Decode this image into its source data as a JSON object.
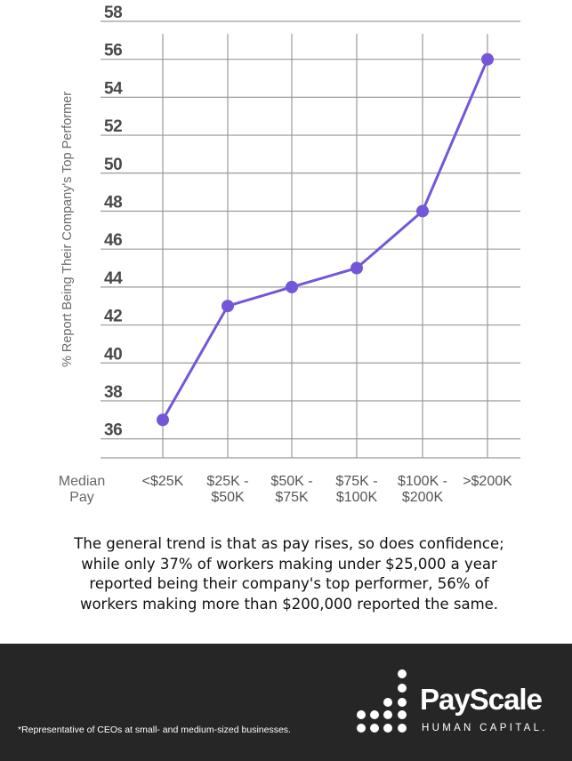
{
  "chart_data": {
    "type": "line",
    "ylabel": "% Report Being Their Company's Top Performer",
    "xlabel": "Median Pay",
    "categories": [
      "<$25K",
      "$25K - $50K",
      "$50K - $75K",
      "$75K - $100K",
      "$100K - $200K",
      ">$200K"
    ],
    "category_lines": [
      [
        "<$25K"
      ],
      [
        "$25K -",
        "$50K"
      ],
      [
        "$50K -",
        "$75K"
      ],
      [
        "$75K -",
        "$100K"
      ],
      [
        "$100K -",
        "$200K"
      ],
      [
        ">$200K"
      ]
    ],
    "xlabel_lines": [
      "Median",
      "Pay"
    ],
    "values": [
      37,
      43,
      44,
      45,
      48,
      56
    ],
    "ylim": [
      35,
      58
    ],
    "yticks": [
      36,
      38,
      40,
      42,
      44,
      46,
      48,
      50,
      52,
      54,
      56,
      58
    ],
    "grid": true,
    "colors": {
      "line": "#7457d9",
      "grid": "#9a9a9a",
      "tick": "#4a4a4a"
    }
  },
  "caption": {
    "lines": [
      "The general trend is that as pay rises, so does confidence;",
      "while only 37% of workers making under $25,000 a year",
      "reported being their company's top performer, 56% of",
      "workers making more than $200,000 reported the same."
    ]
  },
  "footer": {
    "footnote": "*Representative of CEOs at small- and medium-sized businesses.",
    "brand": "PayScale",
    "tagline": "HUMAN CAPITAL.",
    "background": "#262626"
  }
}
